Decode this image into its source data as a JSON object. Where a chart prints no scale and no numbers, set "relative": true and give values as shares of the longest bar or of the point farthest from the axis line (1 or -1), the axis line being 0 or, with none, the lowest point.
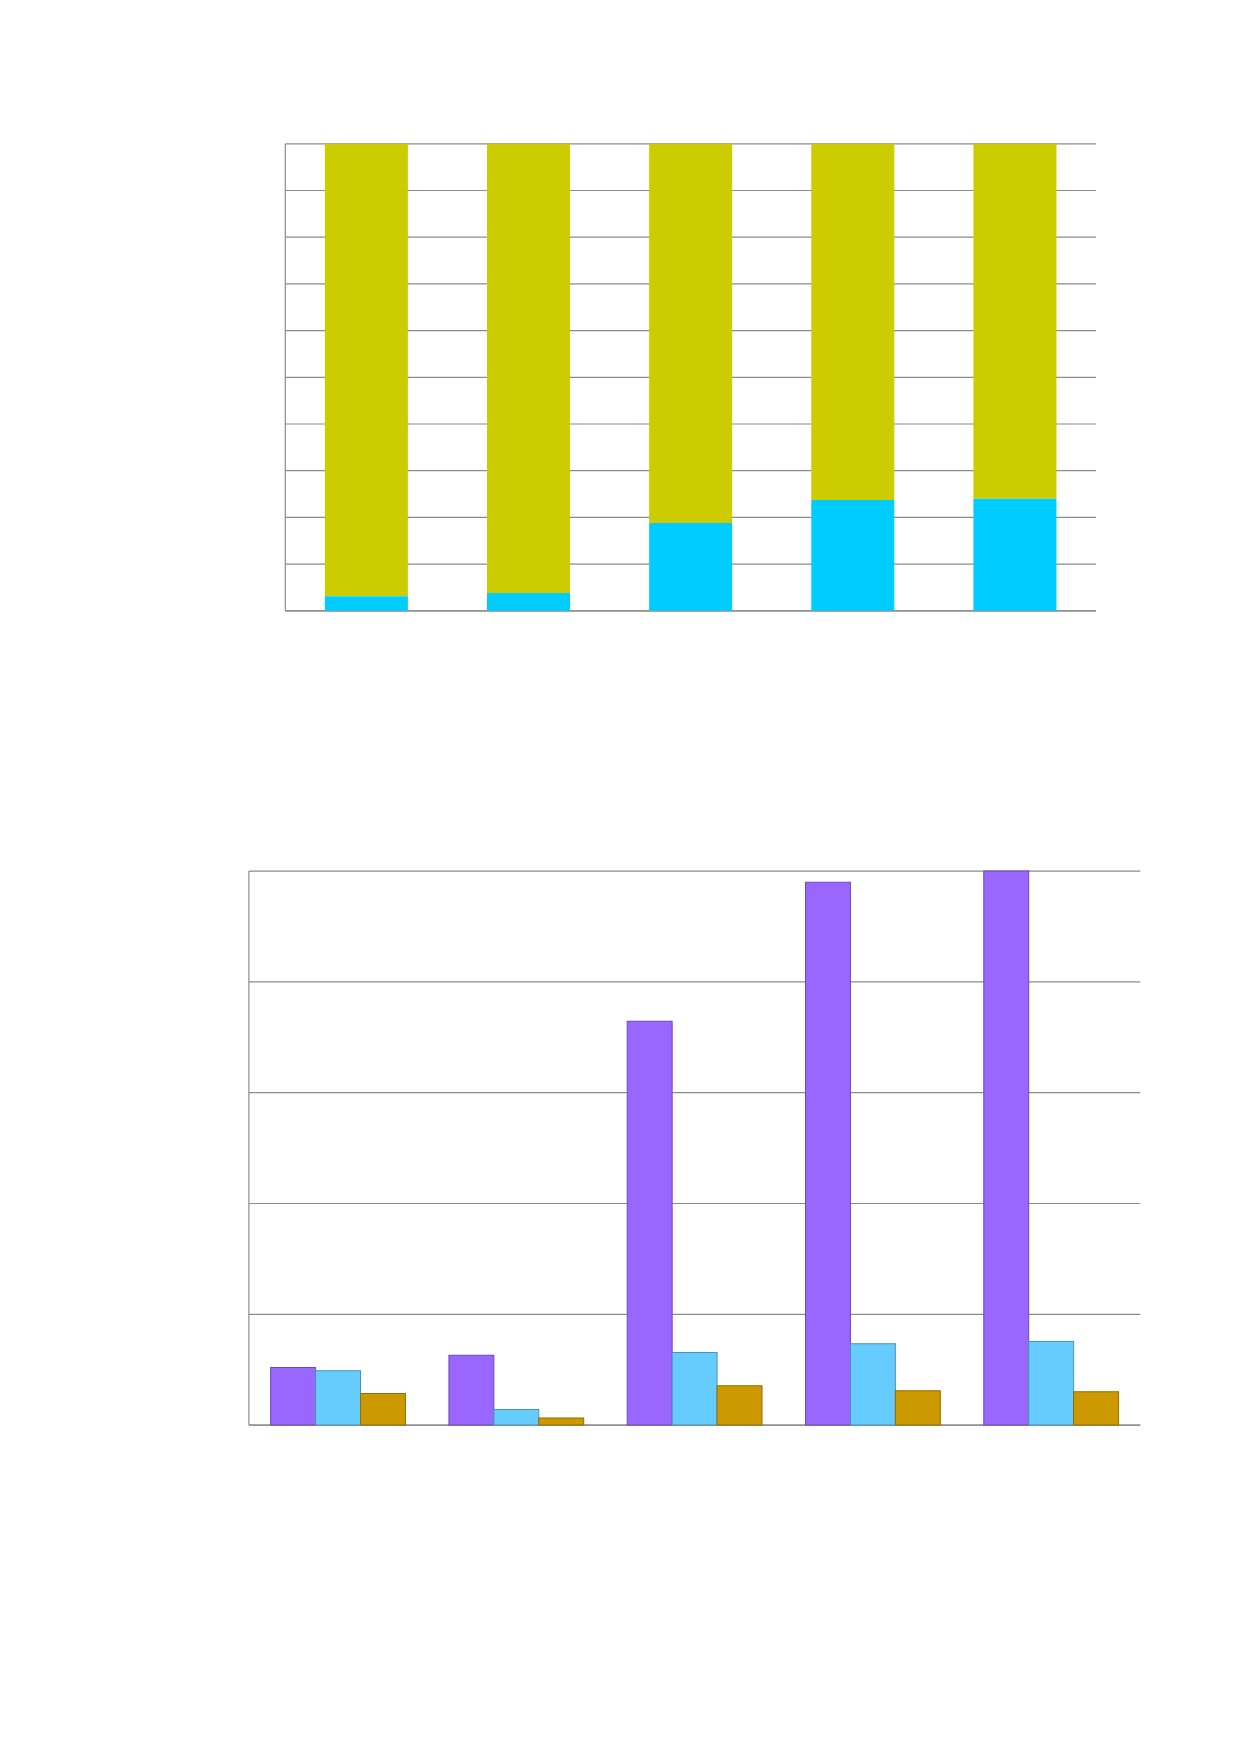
{
  "chart_data": [
    {
      "type": "bar",
      "stacked": true,
      "relative": true,
      "grid": "y",
      "categories": [
        null,
        null,
        null,
        null,
        null
      ],
      "series": [
        {
          "color": "#00ccff",
          "values": [
            0.031,
            0.038,
            0.188,
            0.237,
            0.24
          ]
        },
        {
          "color": "#cccc00",
          "values": [
            0.969,
            0.962,
            0.812,
            0.763,
            0.76
          ]
        }
      ]
    },
    {
      "type": "bar",
      "relative": true,
      "grid": "y",
      "categories": [
        null,
        null,
        null,
        null,
        null
      ],
      "series": [
        {
          "color": "#9966ff",
          "values": [
            0.104,
            0.126,
            0.729,
            0.98,
            1
          ]
        },
        {
          "color": "#66ccff",
          "values": [
            0.098,
            0.028,
            0.131,
            0.147,
            0.151
          ]
        },
        {
          "color": "#cc9900",
          "values": [
            0.057,
            0.013,
            0.071,
            0.062,
            0.06
          ]
        }
      ]
    }
  ]
}
